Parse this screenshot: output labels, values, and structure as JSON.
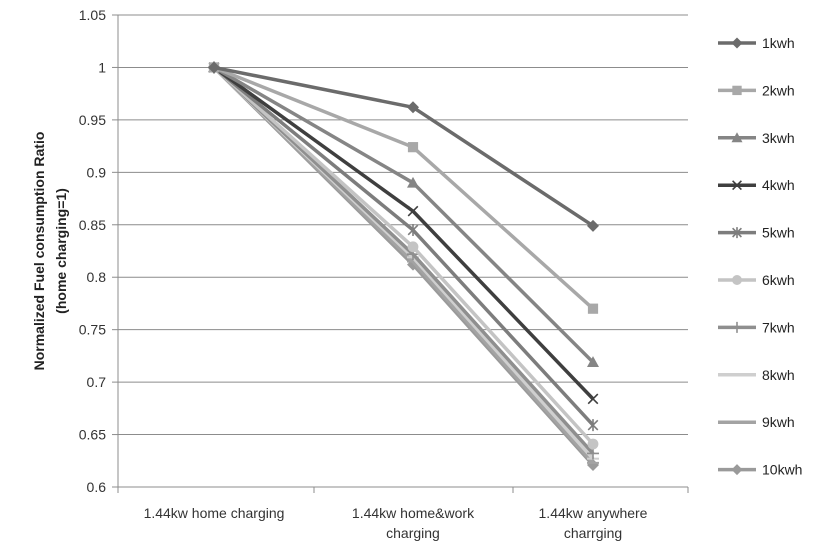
{
  "chart_data": {
    "type": "line",
    "title": "",
    "ylabel_lines": [
      "Normalized Fuel consumption Ratio",
      "(home charging=1)"
    ],
    "xlabel": "",
    "categories": [
      [
        "1.44kw home charging"
      ],
      [
        "1.44kw home&work",
        "charging"
      ],
      [
        "1.44kw anywhere",
        "charrging"
      ]
    ],
    "ylim": [
      0.6,
      1.05
    ],
    "yticks": [
      "0.6",
      "0.65",
      "0.7",
      "0.75",
      "0.8",
      "0.85",
      "0.9",
      "0.95",
      "1",
      "1.05"
    ],
    "grid": true,
    "legend_position": "right",
    "series": [
      {
        "name": "1kwh",
        "values": [
          1.0,
          0.962,
          0.849
        ],
        "color": "#6b6b6b",
        "marker": "diamond"
      },
      {
        "name": "2kwh",
        "values": [
          1.0,
          0.924,
          0.77
        ],
        "color": "#a8a8a8",
        "marker": "square"
      },
      {
        "name": "3kwh",
        "values": [
          1.0,
          0.89,
          0.719
        ],
        "color": "#858585",
        "marker": "triangle"
      },
      {
        "name": "4kwh",
        "values": [
          1.0,
          0.863,
          0.684
        ],
        "color": "#3f3f3f",
        "marker": "x"
      },
      {
        "name": "5kwh",
        "values": [
          1.0,
          0.845,
          0.659
        ],
        "color": "#7d7d7d",
        "marker": "star"
      },
      {
        "name": "6kwh",
        "values": [
          1.0,
          0.829,
          0.641
        ],
        "color": "#c4c4c4",
        "marker": "circle"
      },
      {
        "name": "7kwh",
        "values": [
          1.0,
          0.822,
          0.632
        ],
        "color": "#8f8f8f",
        "marker": "plus"
      },
      {
        "name": "8kwh",
        "values": [
          1.0,
          0.819,
          0.627
        ],
        "color": "#cfcfcf",
        "marker": "dash"
      },
      {
        "name": "9kwh",
        "values": [
          1.0,
          0.815,
          0.623
        ],
        "color": "#a3a3a3",
        "marker": "dash"
      },
      {
        "name": "10kwh",
        "values": [
          1.0,
          0.812,
          0.621
        ],
        "color": "#9a9a9a",
        "marker": "diamond"
      }
    ]
  }
}
